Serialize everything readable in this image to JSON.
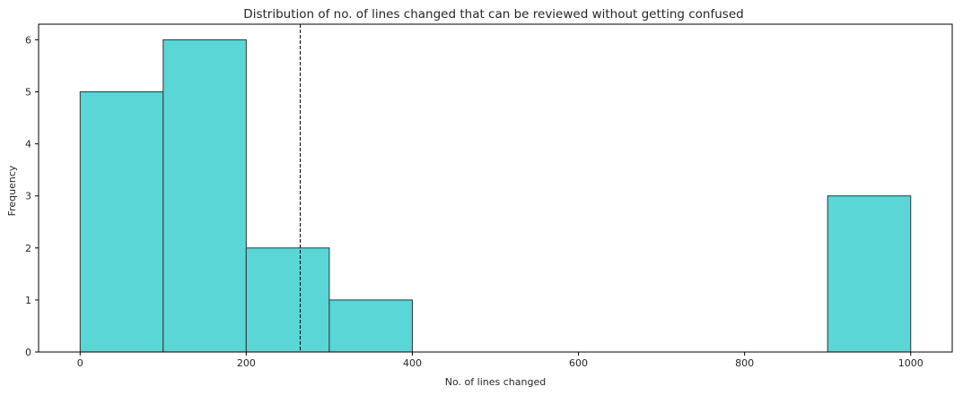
{
  "chart_data": {
    "type": "bar",
    "subtype": "histogram",
    "title": "Distribution of no. of lines changed that can be reviewed without getting confused",
    "xlabel": "No. of lines changed",
    "ylabel": "Frequency",
    "bins": [
      {
        "start": 0,
        "end": 100,
        "count": 5
      },
      {
        "start": 100,
        "end": 200,
        "count": 6
      },
      {
        "start": 200,
        "end": 300,
        "count": 2
      },
      {
        "start": 300,
        "end": 400,
        "count": 1
      },
      {
        "start": 400,
        "end": 500,
        "count": 0
      },
      {
        "start": 500,
        "end": 600,
        "count": 0
      },
      {
        "start": 600,
        "end": 700,
        "count": 0
      },
      {
        "start": 700,
        "end": 800,
        "count": 0
      },
      {
        "start": 800,
        "end": 900,
        "count": 0
      },
      {
        "start": 900,
        "end": 1000,
        "count": 3
      }
    ],
    "reference_line": {
      "x": 265,
      "style": "dashed",
      "color": "#000000"
    },
    "xlim": [
      -50,
      1050
    ],
    "ylim": [
      0,
      6.3
    ],
    "xticks": [
      0,
      200,
      400,
      600,
      800,
      1000
    ],
    "xtick_labels": [
      "0",
      "200",
      "400",
      "600",
      "800",
      "1000"
    ],
    "yticks": [
      0,
      1,
      2,
      3,
      4,
      5,
      6
    ],
    "ytick_labels": [
      "0",
      "1",
      "2",
      "3",
      "4",
      "5",
      "6"
    ],
    "grid": false,
    "bar_color": "#5bd6d6",
    "bar_edge_color": "#333333"
  }
}
